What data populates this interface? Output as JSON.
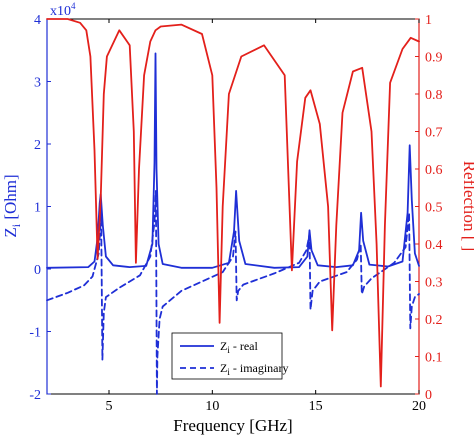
{
  "chart_data": {
    "type": "line",
    "xlabel": "Frequency [GHz]",
    "ylabel_left": "Z_i [Ohm]",
    "ylabel_left_main": "Z",
    "ylabel_left_sub": "i",
    "ylabel_left_unit": " [Ohm]",
    "ylabel_right": "Reflection [ ]",
    "y_left_exponent_label": "x10",
    "y_left_exponent": "4",
    "xlim": [
      2,
      20
    ],
    "ylim_left": [
      -2,
      4
    ],
    "ylim_right": [
      0,
      1
    ],
    "x_ticks": [
      5,
      10,
      15,
      20
    ],
    "x_tick_labels": [
      "5",
      "10",
      "15",
      "20"
    ],
    "y_left_ticks": [
      -2,
      -1,
      0,
      1,
      2,
      3,
      4
    ],
    "y_left_tick_labels": [
      "-2",
      "-1",
      "0",
      "1",
      "2",
      "3",
      "4"
    ],
    "y_right_ticks": [
      0,
      0.1,
      0.2,
      0.3,
      0.4,
      0.5,
      0.6,
      0.7,
      0.8,
      0.9,
      1
    ],
    "y_right_tick_labels": [
      "0",
      "0.1",
      "0.2",
      "0.3",
      "0.4",
      "0.5",
      "0.6",
      "0.7",
      "0.8",
      "0.9",
      "1"
    ],
    "colors": {
      "left_axis": "#1f2fd6",
      "right_axis": "#e3201b",
      "frame": "#000000"
    },
    "legend": {
      "placement": "bottom-center",
      "entries": [
        {
          "main": "Z",
          "sub": "i",
          "rest": " - real",
          "style": "solid"
        },
        {
          "main": "Z",
          "sub": "i",
          "rest": " - imaginary",
          "style": "dashed"
        }
      ]
    },
    "series": [
      {
        "label": "Z_i - real",
        "axis": "left",
        "color": "#1f2fd6",
        "style": "solid",
        "x": [
          2,
          4,
          4.3,
          4.45,
          4.55,
          4.6,
          4.7,
          4.85,
          5.2,
          6,
          6.8,
          7.1,
          7.2,
          7.25,
          7.3,
          7.4,
          7.6,
          8.5,
          10,
          10.8,
          11.05,
          11.15,
          11.3,
          11.6,
          13,
          14.2,
          14.6,
          14.7,
          14.8,
          15.1,
          16,
          16.8,
          17.1,
          17.2,
          17.3,
          17.6,
          18.5,
          19.2,
          19.45,
          19.55,
          19.65,
          19.8,
          20
        ],
        "y": [
          0.02,
          0.03,
          0.12,
          0.5,
          1.05,
          1.2,
          0.7,
          0.2,
          0.06,
          0.03,
          0.05,
          0.4,
          1.7,
          3.45,
          1.6,
          0.4,
          0.08,
          0.02,
          0.02,
          0.1,
          0.6,
          1.25,
          0.45,
          0.08,
          0.02,
          0.03,
          0.2,
          0.62,
          0.3,
          0.06,
          0.03,
          0.06,
          0.3,
          0.9,
          0.45,
          0.07,
          0.04,
          0.12,
          0.9,
          1.98,
          1.1,
          0.25,
          0.05
        ]
      },
      {
        "label": "Z_i - imaginary",
        "axis": "left",
        "color": "#1f2fd6",
        "style": "dashed",
        "x": [
          2,
          3,
          3.8,
          4.2,
          4.5,
          4.58,
          4.62,
          4.68,
          4.75,
          4.85,
          5.5,
          6.5,
          7.0,
          7.2,
          7.27,
          7.32,
          7.34,
          7.45,
          7.6,
          8.5,
          9.5,
          10.5,
          11.0,
          11.12,
          11.18,
          11.25,
          11.5,
          13,
          14.2,
          14.55,
          14.7,
          14.75,
          14.85,
          15.2,
          16.5,
          17.0,
          17.18,
          17.23,
          17.35,
          17.7,
          18.8,
          19.35,
          19.52,
          19.58,
          19.65,
          19.8,
          20
        ],
        "y": [
          -0.5,
          -0.38,
          -0.26,
          -0.12,
          0.25,
          0.65,
          0.95,
          -1.45,
          -0.7,
          -0.45,
          -0.3,
          -0.1,
          0.2,
          0.75,
          1.25,
          -2.0,
          -1.4,
          -0.8,
          -0.6,
          -0.35,
          -0.2,
          -0.05,
          0.2,
          0.6,
          -0.5,
          -0.35,
          -0.25,
          -0.07,
          0.1,
          0.3,
          0.55,
          -0.65,
          -0.35,
          -0.2,
          -0.05,
          0.15,
          0.4,
          -0.4,
          -0.28,
          -0.15,
          0.1,
          0.35,
          0.9,
          -0.95,
          -0.6,
          -0.45,
          -0.4
        ]
      },
      {
        "label": "Reflection",
        "axis": "right",
        "color": "#e3201b",
        "style": "solid",
        "x": [
          2,
          3,
          3.6,
          3.9,
          4.1,
          4.3,
          4.45,
          4.6,
          4.75,
          4.9,
          5.5,
          6.0,
          6.2,
          6.3,
          6.45,
          6.7,
          7.0,
          7.25,
          7.5,
          8.5,
          9.5,
          10.0,
          10.2,
          10.35,
          10.5,
          10.8,
          11.4,
          12.5,
          13.5,
          13.85,
          14.1,
          14.5,
          14.75,
          15.2,
          15.6,
          15.8,
          16.0,
          16.3,
          16.8,
          17.25,
          17.7,
          17.95,
          18.15,
          18.35,
          18.6,
          19.2,
          19.6,
          20
        ],
        "y": [
          1.0,
          1.0,
          0.99,
          0.97,
          0.9,
          0.65,
          0.36,
          0.52,
          0.8,
          0.9,
          0.97,
          0.93,
          0.7,
          0.35,
          0.6,
          0.85,
          0.94,
          0.97,
          0.98,
          0.985,
          0.96,
          0.85,
          0.55,
          0.19,
          0.5,
          0.8,
          0.9,
          0.93,
          0.85,
          0.33,
          0.62,
          0.79,
          0.81,
          0.72,
          0.5,
          0.17,
          0.45,
          0.75,
          0.86,
          0.87,
          0.7,
          0.4,
          0.02,
          0.45,
          0.83,
          0.92,
          0.95,
          0.94
        ]
      }
    ]
  }
}
